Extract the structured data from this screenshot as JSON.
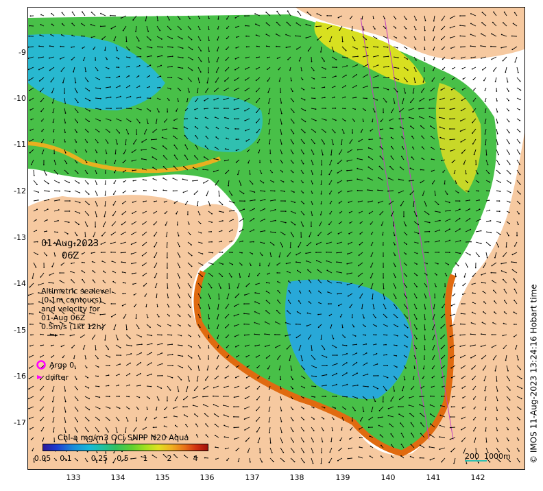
{
  "map": {
    "date": "01-Aug-2023",
    "time": "06Z",
    "altimetry_note": [
      "Altimetric sealevel",
      "(0.1m contours)",
      "and velocity for",
      "01-Aug 06Z",
      "0.5m/s (1kt 12h)"
    ],
    "legend": {
      "argo_label": "Argo 0",
      "drifter_label": "drifter",
      "argo_color": "#ff00ff",
      "drifter_color": "#ff00ff"
    },
    "colorbar": {
      "title": "Chl-a mg/m3 OCi SNPP N20 Aqua",
      "ticks": [
        "0.05",
        "0.1",
        "0.25",
        "0.5",
        "1",
        "2",
        "4"
      ]
    },
    "scale_label": "200  1000m",
    "credit": "© IMOS 11-Aug-2023 13:24:16 Hobart time",
    "lon_ticks": [
      "133",
      "134",
      "135",
      "136",
      "137",
      "138",
      "139",
      "140",
      "141",
      "142"
    ],
    "lat_ticks": [
      "-9",
      "-10",
      "-11",
      "-12",
      "-13",
      "-14",
      "-15",
      "-16",
      "-17"
    ],
    "colors": {
      "land": "#f6c9a0",
      "no_data": "#ffffff",
      "low_chl": "#20b8d0",
      "mid_chl": "#40c040",
      "high_chl": "#e8e020",
      "very_high_chl": "#d04010"
    }
  }
}
